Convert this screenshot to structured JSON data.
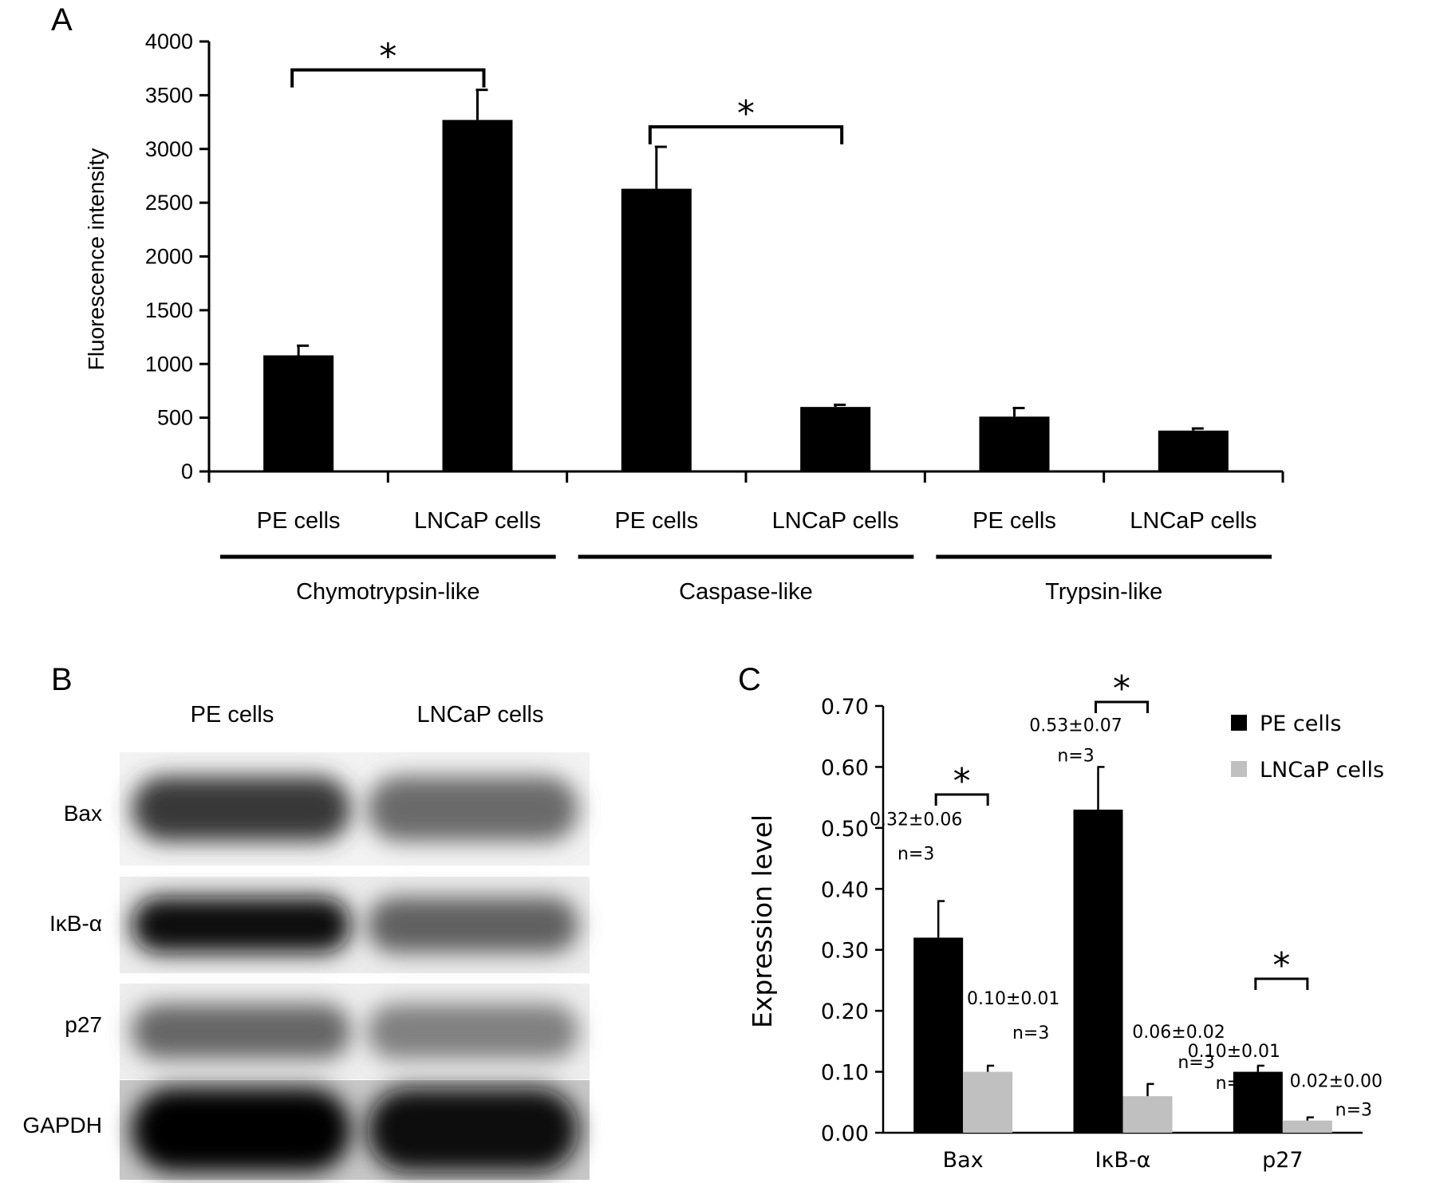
{
  "panels": {
    "a": {
      "letter": "A"
    },
    "b": {
      "letter": "B"
    },
    "c": {
      "letter": "C"
    }
  },
  "chart_data": [
    {
      "type": "bar",
      "panel": "A",
      "ylabel": "Fluorescence intensity",
      "ylim": [
        0,
        4000
      ],
      "yticks": [
        "0",
        "500",
        "1000",
        "1500",
        "2000",
        "2500",
        "3000",
        "3500",
        "4000"
      ],
      "groups": [
        "Chymotrypsin-like",
        "Caspase-like",
        "Trypsin-like"
      ],
      "categories": [
        "PE cells",
        "LNCaP cells",
        "PE cells",
        "LNCaP cells",
        "PE cells",
        "LNCaP cells"
      ],
      "values": [
        1080,
        3270,
        2630,
        600,
        510,
        380
      ],
      "errors": [
        90,
        280,
        390,
        20,
        80,
        20
      ],
      "color": "#000000",
      "significance": [
        {
          "between": [
            0,
            1
          ],
          "label": "*"
        },
        {
          "between": [
            2,
            3
          ],
          "label": "*"
        }
      ]
    },
    {
      "type": "image",
      "panel": "B",
      "lanes": [
        "PE cells",
        "LNCaP cells"
      ],
      "rows": [
        {
          "label": "Bax",
          "intensity": [
            0.78,
            0.58
          ]
        },
        {
          "label": "IκB-α",
          "intensity": [
            0.95,
            0.62
          ]
        },
        {
          "label": "p27",
          "intensity": [
            0.6,
            0.5
          ]
        },
        {
          "label": "GAPDH",
          "intensity": [
            0.98,
            0.95
          ]
        }
      ]
    },
    {
      "type": "bar",
      "panel": "C",
      "ylabel": "Expression level",
      "ylim": [
        0,
        0.7
      ],
      "yticks": [
        "0.00",
        "0.10",
        "0.20",
        "0.30",
        "0.40",
        "0.50",
        "0.60",
        "0.70"
      ],
      "categories": [
        "Bax",
        "IκB-α",
        "p27"
      ],
      "series": [
        {
          "name": "PE cells",
          "color": "#000000",
          "values": [
            0.32,
            0.53,
            0.1
          ],
          "errors": [
            0.06,
            0.07,
            0.01
          ],
          "value_labels": [
            "0.32±0.06",
            "0.53±0.07",
            "0.10±0.01"
          ],
          "n_labels": [
            "n=3",
            "n=3",
            "n=3"
          ]
        },
        {
          "name": "LNCaP cells",
          "color": "#c0c0c0",
          "values": [
            0.1,
            0.06,
            0.02
          ],
          "errors": [
            0.01,
            0.02,
            0.0
          ],
          "value_labels": [
            "0.10±0.01",
            "0.06±0.02",
            "0.02±0.00"
          ],
          "n_labels": [
            "n=3",
            "n=3",
            "n=3"
          ]
        }
      ],
      "significance": [
        "*",
        "*",
        "*"
      ],
      "legend": "top-right"
    }
  ]
}
